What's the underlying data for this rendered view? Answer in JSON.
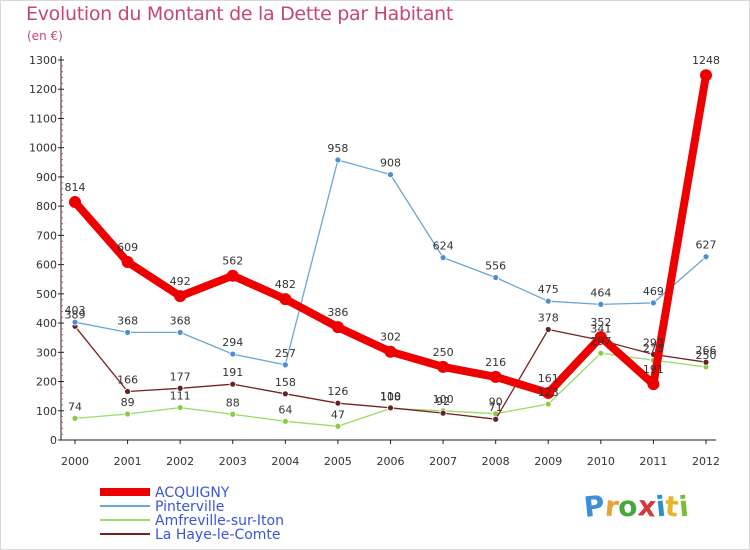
{
  "header": {
    "title": "Evolution du Montant de la Dette par Habitant",
    "unit": "(en €)"
  },
  "logo": {
    "letters": [
      "P",
      "r",
      "o",
      "x",
      "i",
      "t",
      "i"
    ],
    "colors": [
      "#3d8fd9",
      "#e9a13b",
      "#47a83f",
      "#d33b3b",
      "#2e8fcf",
      "#e6b62e",
      "#7cbc3c"
    ]
  },
  "chart_data": {
    "type": "line",
    "x": [
      "2000",
      "2001",
      "2002",
      "2003",
      "2004",
      "2005",
      "2006",
      "2007",
      "2008",
      "2009",
      "2010",
      "2011",
      "2012"
    ],
    "ylim": [
      0,
      1300
    ],
    "yticks": [
      0,
      100,
      200,
      300,
      400,
      500,
      600,
      700,
      800,
      900,
      1000,
      1100,
      1200,
      1300
    ],
    "grid": false,
    "legend_position": "bottom-left",
    "series": [
      {
        "name": "ACQUIGNY",
        "color": "#ee0000",
        "values": [
          814,
          609,
          492,
          562,
          482,
          386,
          302,
          250,
          216,
          161,
          352,
          191,
          1248
        ]
      },
      {
        "name": "Pinterville",
        "color": "#6aa6d6",
        "values": [
          403,
          368,
          368,
          294,
          257,
          958,
          908,
          624,
          556,
          475,
          464,
          469,
          627
        ]
      },
      {
        "name": "Amfreville-sur-Iton",
        "color": "#99dd66",
        "values": [
          74,
          89,
          111,
          88,
          64,
          47,
          108,
          100,
          90,
          123,
          297,
          273,
          250
        ]
      },
      {
        "name": "La Haye-le-Comte",
        "color": "#772222",
        "values": [
          389,
          166,
          177,
          191,
          158,
          126,
          110,
          92,
          71,
          378,
          341,
          293,
          266
        ]
      }
    ],
    "data_labels": [
      [
        "814",
        "609",
        "492",
        "562",
        "482",
        "386",
        "302",
        "250",
        "216",
        "161",
        "352",
        "191",
        "1248"
      ],
      [
        "403",
        "368",
        "368",
        "294",
        "257",
        "958",
        "908",
        "624",
        "556",
        "475",
        "464",
        "469",
        "627"
      ],
      [
        "74",
        "89",
        "111",
        "88",
        "64",
        "47",
        "108",
        "100",
        "90",
        "123",
        "297",
        "273",
        "250"
      ],
      [
        "389",
        "166",
        "177",
        "191",
        "158",
        "126",
        "110",
        "92",
        "71",
        "378",
        "341",
        "293",
        "266"
      ]
    ]
  }
}
